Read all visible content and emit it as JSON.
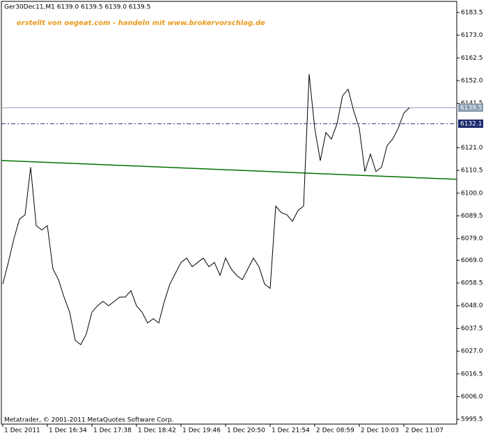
{
  "chart_data": {
    "type": "line",
    "title": "Ger30Dec11,M1  6139.0 6139.5 6139.0 6139.5",
    "annotation": "erstellt von oegeat.com - handeln mit www.brokervorschlag.de",
    "copyright": "Metatrader, © 2001-2011 MetaQuotes Software Corp.",
    "categories": [
      "1 Dec 2011",
      null,
      null,
      null,
      null,
      null,
      null,
      null,
      "1 Dec 16:34",
      null,
      null,
      null,
      null,
      null,
      null,
      null,
      "1 Dec 17:38",
      null,
      null,
      null,
      null,
      null,
      null,
      null,
      "1 Dec 18:42",
      null,
      null,
      null,
      null,
      null,
      null,
      null,
      "1 Dec 19:46",
      null,
      null,
      null,
      null,
      null,
      null,
      null,
      "1 Dec 20:50",
      null,
      null,
      null,
      null,
      null,
      null,
      null,
      "1 Dec 21:54",
      null,
      null,
      null,
      null,
      null,
      null,
      null,
      "2 Dec 08:59",
      null,
      null,
      null,
      null,
      null,
      null,
      null,
      "2 Dec 10:03",
      null,
      null,
      null,
      null,
      null,
      null,
      null,
      "2 Dec 11:07",
      null
    ],
    "values": [
      6058,
      6068,
      6079,
      6088,
      6090,
      6112,
      6085,
      6083,
      6085,
      6065,
      6060,
      6052,
      6045,
      6032,
      6030,
      6035,
      6045,
      6048,
      6050,
      6048,
      6050,
      6052,
      6052,
      6055,
      6048,
      6045,
      6040,
      6042,
      6040,
      6050,
      6058,
      6063,
      6068,
      6070,
      6066,
      6068,
      6070,
      6066,
      6068,
      6062,
      6070,
      6065,
      6062,
      6060,
      6065,
      6070,
      6066,
      6058,
      6056,
      6094,
      6091,
      6090,
      6087,
      6092,
      6094,
      6155,
      6130,
      6115,
      6128,
      6125,
      6132,
      6145,
      6148,
      6138,
      6130,
      6110,
      6118,
      6110,
      6112,
      6122,
      6125,
      6130,
      6137,
      6139.5
    ],
    "color": "#000000",
    "price_lines": [
      {
        "value": 6139.5,
        "color": "#8a9bb0",
        "style": "solid"
      },
      {
        "value": 6132.1,
        "color": "#1a2a6c",
        "style": "dashdot"
      }
    ],
    "trendline": {
      "values": [
        6115.1,
        6106.4
      ],
      "color": "#007000"
    },
    "ylim": [
      5993.3,
      6188.6
    ],
    "yticks": [
      6183.5,
      {
        "value": 6173,
        "label": "6173.0"
      },
      6162.5,
      {
        "value": 6152,
        "label": "6152.0"
      },
      6141.5,
      {
        "value": 6121,
        "label": "6121.0"
      },
      6110.5,
      {
        "value": 6100,
        "label": "6100.0"
      },
      6089.5,
      {
        "value": 6079,
        "label": "6079.0"
      },
      {
        "value": 6069,
        "label": "6069.0"
      },
      6058.5,
      {
        "value": 6048,
        "label": "6048.0"
      },
      6037.5,
      {
        "value": 6027,
        "label": "6027.0"
      },
      6016.5,
      {
        "value": 6006,
        "label": "6006.0"
      },
      5995.5
    ]
  }
}
